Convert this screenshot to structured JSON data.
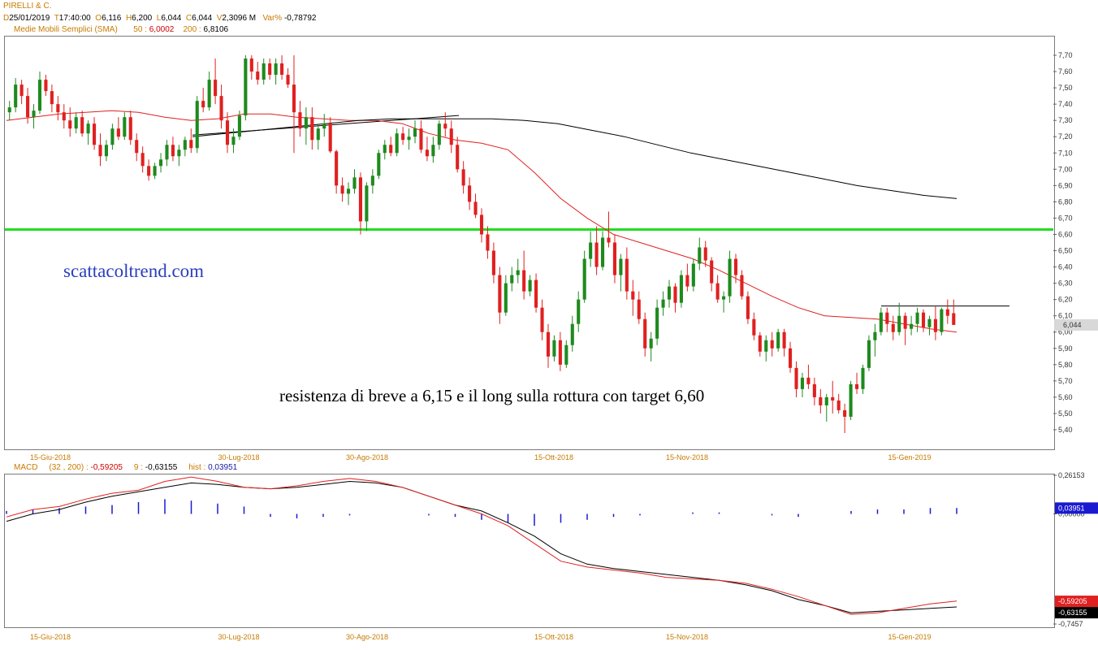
{
  "header": {
    "title": "PIRELLI & C.",
    "d_key": "D",
    "d_val": "25/01/2019",
    "t_key": "T",
    "t_val": "17:40:00",
    "o_key": "O",
    "o_val": "6,116",
    "h_key": "H",
    "h_val": "6,200",
    "l_key": "L",
    "l_val": "6,044",
    "c_key": "C",
    "c_val": "6,044",
    "v_key": "V",
    "v_val": "2,3096 M",
    "var_key": "Var%",
    "var_val": "-0,78792",
    "sma_label": "Medie Mobili Semplici (SMA)",
    "sma50_key": "50 :",
    "sma50_val": "6,0002",
    "sma200_key": "200 :",
    "sma200_val": "6,8106"
  },
  "macd_header": {
    "label": "MACD",
    "params": "(32 , 200) :",
    "macd_val": "-0,59205",
    "sig_key": "9 :",
    "sig_val": "-0,63155",
    "hist_key": "hist :",
    "hist_val": "0,03951"
  },
  "annotations": {
    "watermark": "scattacoltrend.com",
    "note": "resistenza di breve a 6,15 e il long sulla rottura con target 6,60",
    "last_price_tag": "6,044"
  },
  "colors": {
    "up": "#1e8a1e",
    "down": "#e02020",
    "sma50": "#e02020",
    "sma200": "#000000",
    "support": "#22dd22",
    "macd": "#e02020",
    "signal": "#000000",
    "hist": "#1a1ad0"
  },
  "chart_data": [
    {
      "type": "candlestick",
      "title": "PIRELLI & C.",
      "ylim": [
        5.32,
        7.78
      ],
      "yticks": [
        "7,70",
        "7,60",
        "7,50",
        "7,40",
        "7,30",
        "7,20",
        "7,10",
        "7,00",
        "6,90",
        "6,80",
        "6,70",
        "6,60",
        "6,50",
        "6,40",
        "6,30",
        "6,20",
        "6,10",
        "6,00",
        "5,90",
        "5,80",
        "5,70",
        "5,60",
        "5,50",
        "5,40"
      ],
      "xticks": [
        "15-Giu-2018",
        "30-Lug-2018",
        "30-Ago-2018",
        "15-Ott-2018",
        "15-Nov-2018",
        "15-Gen-2019"
      ],
      "support_line": 6.63,
      "resistance_line": 6.16,
      "candles": [
        [
          7.35,
          7.42,
          7.3,
          7.38
        ],
        [
          7.38,
          7.56,
          7.35,
          7.52
        ],
        [
          7.52,
          7.55,
          7.4,
          7.45
        ],
        [
          7.45,
          7.5,
          7.28,
          7.32
        ],
        [
          7.32,
          7.4,
          7.25,
          7.36
        ],
        [
          7.36,
          7.6,
          7.34,
          7.55
        ],
        [
          7.55,
          7.58,
          7.45,
          7.48
        ],
        [
          7.48,
          7.52,
          7.35,
          7.4
        ],
        [
          7.4,
          7.45,
          7.3,
          7.35
        ],
        [
          7.35,
          7.4,
          7.25,
          7.3
        ],
        [
          7.3,
          7.38,
          7.2,
          7.25
        ],
        [
          7.25,
          7.35,
          7.22,
          7.32
        ],
        [
          7.32,
          7.36,
          7.2,
          7.22
        ],
        [
          7.22,
          7.3,
          7.15,
          7.28
        ],
        [
          7.28,
          7.32,
          7.12,
          7.15
        ],
        [
          7.15,
          7.22,
          7.02,
          7.08
        ],
        [
          7.08,
          7.18,
          7.05,
          7.15
        ],
        [
          7.15,
          7.28,
          7.12,
          7.25
        ],
        [
          7.25,
          7.32,
          7.18,
          7.2
        ],
        [
          7.2,
          7.35,
          7.18,
          7.32
        ],
        [
          7.32,
          7.36,
          7.15,
          7.18
        ],
        [
          7.18,
          7.22,
          7.05,
          7.1
        ],
        [
          7.1,
          7.14,
          6.98,
          7.02
        ],
        [
          7.02,
          7.06,
          6.93,
          6.96
        ],
        [
          6.96,
          7.04,
          6.94,
          7.02
        ],
        [
          7.02,
          7.1,
          6.98,
          7.06
        ],
        [
          7.06,
          7.18,
          7.02,
          7.15
        ],
        [
          7.15,
          7.2,
          7.05,
          7.08
        ],
        [
          7.08,
          7.15,
          7.02,
          7.12
        ],
        [
          7.12,
          7.2,
          7.08,
          7.18
        ],
        [
          7.18,
          7.25,
          7.1,
          7.13
        ],
        [
          7.13,
          7.45,
          7.1,
          7.42
        ],
        [
          7.42,
          7.5,
          7.35,
          7.38
        ],
        [
          7.38,
          7.6,
          7.36,
          7.55
        ],
        [
          7.55,
          7.68,
          7.4,
          7.45
        ],
        [
          7.45,
          7.52,
          7.25,
          7.3
        ],
        [
          7.3,
          7.35,
          7.1,
          7.15
        ],
        [
          7.15,
          7.25,
          7.1,
          7.2
        ],
        [
          7.2,
          7.36,
          7.18,
          7.33
        ],
        [
          7.33,
          7.7,
          7.3,
          7.68
        ],
        [
          7.68,
          7.7,
          7.55,
          7.6
        ],
        [
          7.6,
          7.66,
          7.52,
          7.55
        ],
        [
          7.55,
          7.68,
          7.52,
          7.65
        ],
        [
          7.65,
          7.68,
          7.55,
          7.58
        ],
        [
          7.58,
          7.68,
          7.52,
          7.65
        ],
        [
          7.65,
          7.7,
          7.55,
          7.58
        ],
        [
          7.58,
          7.62,
          7.5,
          7.52
        ],
        [
          7.52,
          7.7,
          7.1,
          7.35
        ],
        [
          7.35,
          7.42,
          7.2,
          7.25
        ],
        [
          7.25,
          7.38,
          7.15,
          7.32
        ],
        [
          7.32,
          7.38,
          7.12,
          7.18
        ],
        [
          7.18,
          7.28,
          7.12,
          7.25
        ],
        [
          7.25,
          7.34,
          7.2,
          7.28
        ],
        [
          7.28,
          7.32,
          7.1,
          7.11
        ],
        [
          7.11,
          7.12,
          6.85,
          6.9
        ],
        [
          6.9,
          6.95,
          6.8,
          6.85
        ],
        [
          6.85,
          6.92,
          6.78,
          6.88
        ],
        [
          6.88,
          7.0,
          6.85,
          6.95
        ],
        [
          6.95,
          6.98,
          6.6,
          6.68
        ],
        [
          6.68,
          6.92,
          6.62,
          6.9
        ],
        [
          6.9,
          7.0,
          6.85,
          6.96
        ],
        [
          6.96,
          7.12,
          6.94,
          7.1
        ],
        [
          7.1,
          7.18,
          7.06,
          7.15
        ],
        [
          7.15,
          7.2,
          7.08,
          7.1
        ],
        [
          7.1,
          7.25,
          7.08,
          7.22
        ],
        [
          7.22,
          7.26,
          7.15,
          7.18
        ],
        [
          7.18,
          7.25,
          7.12,
          7.2
        ],
        [
          7.2,
          7.3,
          7.16,
          7.25
        ],
        [
          7.25,
          7.3,
          7.1,
          7.12
        ],
        [
          7.12,
          7.2,
          7.05,
          7.08
        ],
        [
          7.08,
          7.2,
          7.04,
          7.15
        ],
        [
          7.15,
          7.3,
          7.12,
          7.28
        ],
        [
          7.28,
          7.35,
          7.2,
          7.25
        ],
        [
          7.25,
          7.3,
          7.1,
          7.15
        ],
        [
          7.15,
          7.2,
          6.98,
          7.0
        ],
        [
          7.0,
          7.05,
          6.85,
          6.9
        ],
        [
          6.9,
          6.95,
          6.75,
          6.8
        ],
        [
          6.8,
          6.85,
          6.7,
          6.72
        ],
        [
          6.72,
          6.76,
          6.55,
          6.6
        ],
        [
          6.6,
          6.65,
          6.45,
          6.5
        ],
        [
          6.5,
          6.55,
          6.3,
          6.35
        ],
        [
          6.35,
          6.4,
          6.05,
          6.12
        ],
        [
          6.12,
          6.35,
          6.1,
          6.3
        ],
        [
          6.3,
          6.4,
          6.25,
          6.35
        ],
        [
          6.35,
          6.45,
          6.3,
          6.38
        ],
        [
          6.38,
          6.5,
          6.2,
          6.25
        ],
        [
          6.25,
          6.35,
          6.22,
          6.32
        ],
        [
          6.32,
          6.36,
          6.12,
          6.15
        ],
        [
          6.15,
          6.2,
          5.95,
          6.0
        ],
        [
          6.0,
          6.05,
          5.78,
          5.85
        ],
        [
          5.85,
          5.98,
          5.82,
          5.95
        ],
        [
          5.95,
          6.0,
          5.76,
          5.8
        ],
        [
          5.8,
          5.95,
          5.78,
          5.92
        ],
        [
          5.92,
          6.1,
          5.88,
          6.05
        ],
        [
          6.05,
          6.25,
          6.0,
          6.2
        ],
        [
          6.2,
          6.5,
          6.18,
          6.45
        ],
        [
          6.45,
          6.62,
          6.4,
          6.55
        ],
        [
          6.55,
          6.65,
          6.35,
          6.4
        ],
        [
          6.4,
          6.62,
          6.38,
          6.58
        ],
        [
          6.58,
          6.74,
          6.52,
          6.55
        ],
        [
          6.55,
          6.6,
          6.3,
          6.35
        ],
        [
          6.35,
          6.48,
          6.25,
          6.45
        ],
        [
          6.45,
          6.52,
          6.2,
          6.25
        ],
        [
          6.25,
          6.32,
          6.1,
          6.2
        ],
        [
          6.2,
          6.25,
          6.05,
          6.08
        ],
        [
          6.08,
          6.12,
          5.85,
          5.9
        ],
        [
          5.9,
          6.0,
          5.82,
          5.96
        ],
        [
          5.96,
          6.2,
          5.92,
          6.15
        ],
        [
          6.15,
          6.25,
          6.1,
          6.2
        ],
        [
          6.2,
          6.32,
          6.15,
          6.28
        ],
        [
          6.28,
          6.3,
          6.12,
          6.18
        ],
        [
          6.18,
          6.38,
          6.15,
          6.35
        ],
        [
          6.35,
          6.42,
          6.25,
          6.28
        ],
        [
          6.28,
          6.45,
          6.25,
          6.42
        ],
        [
          6.42,
          6.58,
          6.38,
          6.52
        ],
        [
          6.52,
          6.56,
          6.4,
          6.44
        ],
        [
          6.44,
          6.46,
          6.25,
          6.3
        ],
        [
          6.3,
          6.35,
          6.18,
          6.2
        ],
        [
          6.2,
          6.25,
          6.12,
          6.22
        ],
        [
          6.22,
          6.5,
          6.18,
          6.45
        ],
        [
          6.45,
          6.48,
          6.3,
          6.35
        ],
        [
          6.35,
          6.38,
          6.2,
          6.22
        ],
        [
          6.22,
          6.25,
          6.05,
          6.08
        ],
        [
          6.08,
          6.12,
          5.95,
          5.98
        ],
        [
          5.98,
          6.0,
          5.85,
          5.88
        ],
        [
          5.88,
          5.98,
          5.82,
          5.95
        ],
        [
          5.95,
          6.0,
          5.85,
          5.9
        ],
        [
          5.9,
          6.02,
          5.88,
          6.0
        ],
        [
          6.0,
          6.02,
          5.85,
          5.9
        ],
        [
          5.9,
          5.94,
          5.75,
          5.78
        ],
        [
          5.78,
          5.82,
          5.6,
          5.65
        ],
        [
          5.65,
          5.75,
          5.6,
          5.72
        ],
        [
          5.72,
          5.8,
          5.65,
          5.68
        ],
        [
          5.68,
          5.72,
          5.55,
          5.6
        ],
        [
          5.6,
          5.65,
          5.5,
          5.55
        ],
        [
          5.55,
          5.62,
          5.45,
          5.6
        ],
        [
          5.6,
          5.7,
          5.5,
          5.58
        ],
        [
          5.58,
          5.62,
          5.5,
          5.52
        ],
        [
          5.52,
          5.56,
          5.38,
          5.48
        ],
        [
          5.48,
          5.7,
          5.46,
          5.68
        ],
        [
          5.68,
          5.75,
          5.62,
          5.65
        ],
        [
          5.65,
          5.8,
          5.62,
          5.78
        ],
        [
          5.78,
          5.98,
          5.76,
          5.95
        ],
        [
          5.95,
          6.05,
          5.85,
          6.0
        ],
        [
          6.0,
          6.15,
          5.98,
          6.12
        ],
        [
          6.12,
          6.15,
          6.0,
          6.05
        ],
        [
          6.05,
          6.1,
          5.95,
          6.0
        ],
        [
          6.0,
          6.18,
          5.98,
          6.1
        ],
        [
          6.1,
          6.12,
          5.92,
          6.02
        ],
        [
          6.02,
          6.1,
          5.98,
          6.05
        ],
        [
          6.05,
          6.15,
          6.0,
          6.12
        ],
        [
          6.12,
          6.14,
          6.0,
          6.03
        ],
        [
          6.03,
          6.1,
          5.98,
          6.08
        ],
        [
          6.08,
          6.16,
          5.95,
          6.0
        ],
        [
          6.0,
          6.15,
          5.98,
          6.14
        ],
        [
          6.14,
          6.2,
          6.05,
          6.1
        ],
        [
          6.116,
          6.2,
          6.044,
          6.044
        ]
      ],
      "sma50": [
        7.3,
        7.32,
        7.34,
        7.35,
        7.36,
        7.35,
        7.32,
        7.3,
        7.31,
        7.34,
        7.34,
        7.32,
        7.31,
        7.3,
        7.3,
        7.28,
        7.22,
        7.18,
        7.16,
        7.12,
        6.98,
        6.82,
        6.7,
        6.6,
        6.55,
        6.5,
        6.45,
        6.38,
        6.3,
        6.22,
        6.15,
        6.1,
        6.09,
        6.08,
        6.05,
        6.02,
        6.0
      ],
      "sma200": [
        7.2,
        7.22,
        7.24,
        7.26,
        7.28,
        7.3,
        7.31,
        7.31,
        7.31,
        7.31,
        7.3,
        7.28,
        7.24,
        7.2,
        7.15,
        7.1,
        7.06,
        7.02,
        6.98,
        6.94,
        6.9,
        6.87,
        6.84,
        6.82
      ],
      "last_price": 6.044
    },
    {
      "type": "line",
      "title": "MACD",
      "ylim": [
        -0.7457,
        0.26153
      ],
      "yticks": [
        "0,26153",
        "0,00000",
        "-0,7457"
      ],
      "value_tags": [
        "0,03951",
        "-0,59205",
        "-0,63155"
      ],
      "macd": [
        -0.02,
        0.03,
        0.05,
        0.1,
        0.14,
        0.16,
        0.22,
        0.25,
        0.22,
        0.18,
        0.17,
        0.19,
        0.22,
        0.24,
        0.22,
        0.18,
        0.12,
        0.06,
        0.0,
        -0.08,
        -0.2,
        -0.32,
        -0.36,
        -0.38,
        -0.4,
        -0.43,
        -0.44,
        -0.45,
        -0.47,
        -0.51,
        -0.56,
        -0.62,
        -0.68,
        -0.67,
        -0.64,
        -0.61,
        -0.59
      ],
      "signal": [
        -0.05,
        0.0,
        0.03,
        0.08,
        0.12,
        0.15,
        0.18,
        0.21,
        0.2,
        0.18,
        0.17,
        0.18,
        0.2,
        0.22,
        0.21,
        0.18,
        0.12,
        0.06,
        0.02,
        -0.06,
        -0.15,
        -0.27,
        -0.34,
        -0.37,
        -0.39,
        -0.41,
        -0.43,
        -0.45,
        -0.48,
        -0.52,
        -0.58,
        -0.62,
        -0.67,
        -0.66,
        -0.65,
        -0.64,
        -0.63
      ],
      "hist": [
        0.02,
        0.03,
        0.04,
        0.05,
        0.06,
        0.08,
        0.1,
        0.09,
        0.07,
        0.05,
        -0.02,
        -0.03,
        -0.02,
        -0.01,
        0.0,
        0.0,
        -0.01,
        -0.02,
        -0.04,
        -0.06,
        -0.08,
        -0.06,
        -0.04,
        -0.02,
        -0.01,
        0.0,
        0.01,
        0.01,
        0.0,
        -0.01,
        -0.02,
        0.0,
        0.02,
        0.03,
        0.03,
        0.04,
        0.04
      ]
    }
  ]
}
